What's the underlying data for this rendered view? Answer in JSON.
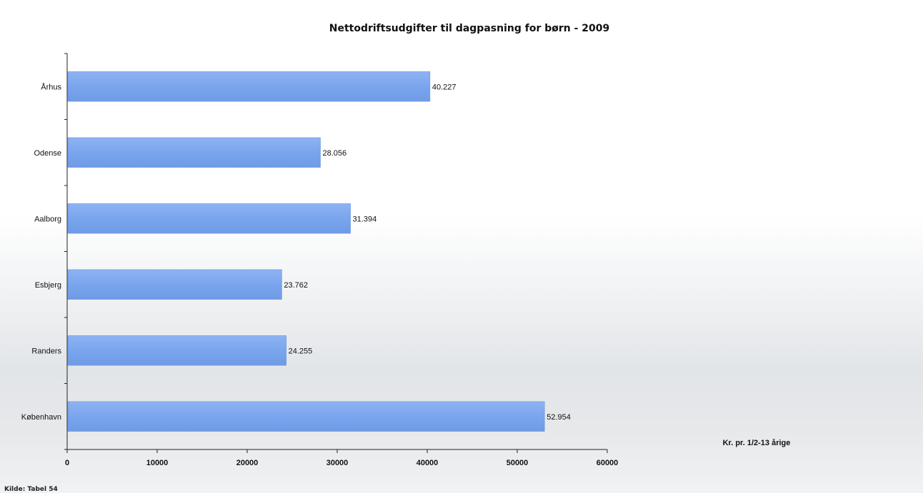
{
  "chart_data": {
    "type": "bar",
    "orientation": "horizontal",
    "title": "Nettodriftsudgifter til dagpasning for børn - 2009",
    "xlabel": "Kr. pr. 1/2-13 årige",
    "ylabel": "",
    "categories": [
      "Århus",
      "Odense",
      "Aalborg",
      "Esbjerg",
      "Randers",
      "København"
    ],
    "values": [
      40227,
      28056,
      31394,
      23762,
      24255,
      52954
    ],
    "value_labels": [
      "40.227",
      "28.056",
      "31.394",
      "23.762",
      "24.255",
      "52.954"
    ],
    "xlim": [
      0,
      60000
    ],
    "xticks": [
      0,
      10000,
      20000,
      30000,
      40000,
      50000,
      60000
    ],
    "grid": false,
    "legend": "none",
    "bar_color": "#7aa5ee",
    "source_note": "Kilde: Tabel 54"
  }
}
